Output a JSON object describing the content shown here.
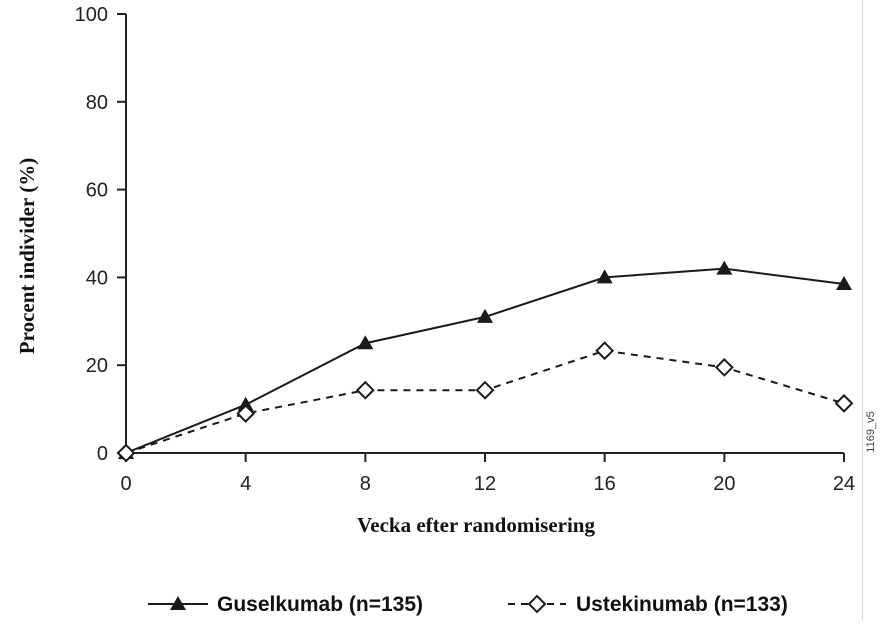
{
  "chart_data": {
    "type": "line",
    "title": "",
    "xlabel": "Vecka efter randomisering",
    "ylabel": "Procent individer (%)",
    "x": [
      0,
      4,
      8,
      12,
      16,
      20,
      24
    ],
    "xticks": [
      "0",
      "4",
      "8",
      "12",
      "16",
      "20",
      "24"
    ],
    "yticks": [
      "0",
      "20",
      "40",
      "60",
      "80",
      "100"
    ],
    "xlim": [
      0,
      24
    ],
    "ylim": [
      0,
      100
    ],
    "grid": false,
    "legend_position": "bottom",
    "series": [
      {
        "name": "Guselkumab (n=135)",
        "values": [
          0,
          11,
          25,
          31,
          40,
          42,
          38.5
        ],
        "marker": "filled-triangle",
        "line_style": "solid",
        "color": "#1a1a1a"
      },
      {
        "name": "Ustekinumab (n=133)",
        "values": [
          0,
          9,
          14.3,
          14.3,
          23.3,
          19.5,
          11.3
        ],
        "marker": "open-diamond",
        "line_style": "dashed",
        "color": "#1a1a1a"
      }
    ],
    "side_note": "1169_v5"
  }
}
